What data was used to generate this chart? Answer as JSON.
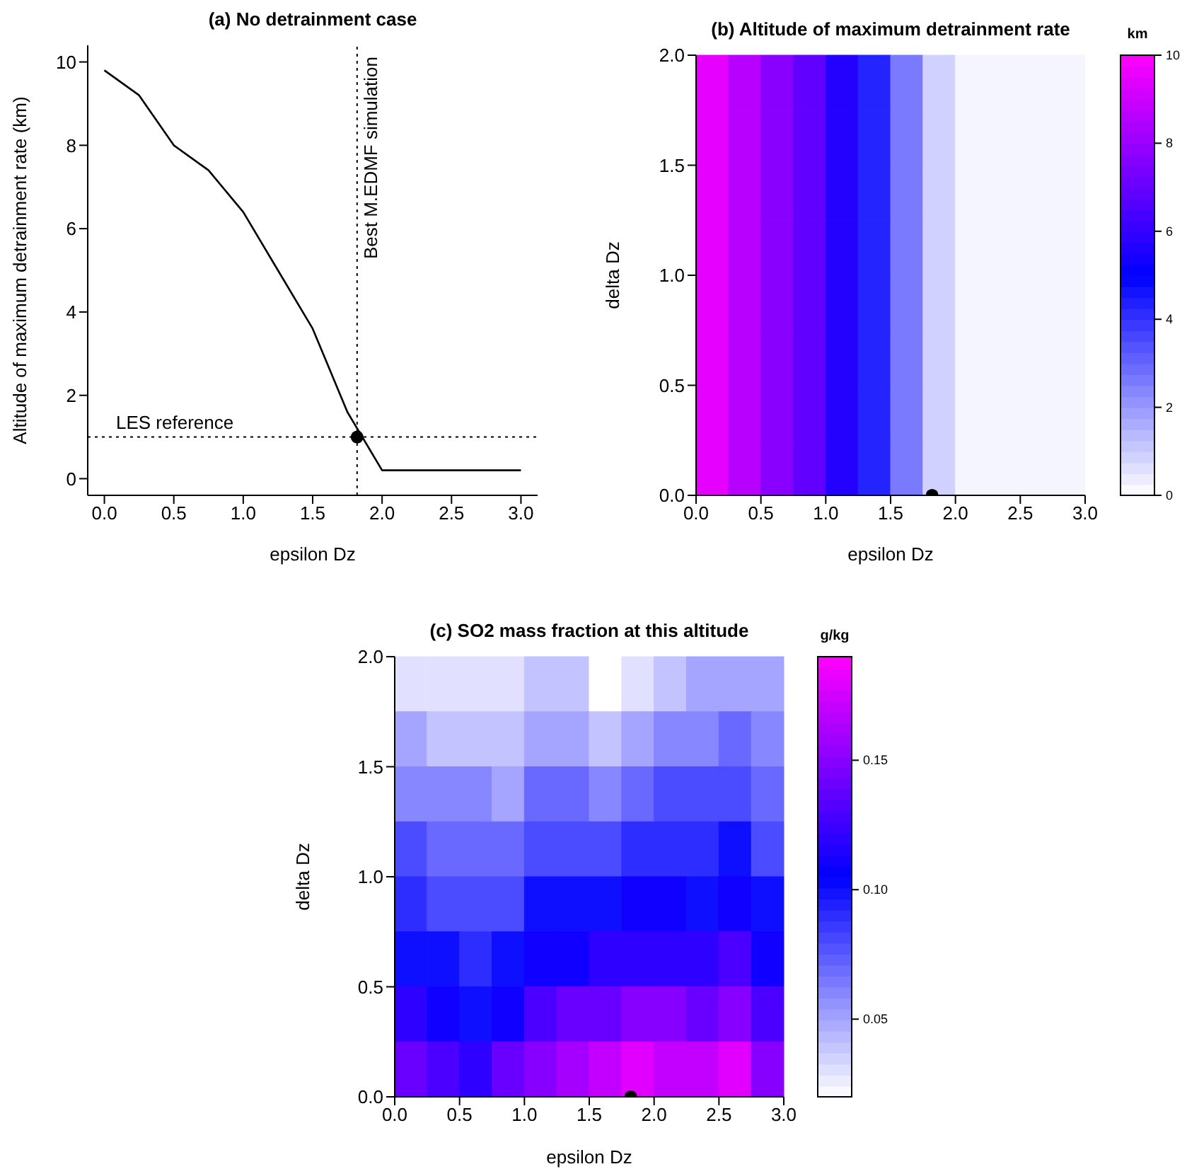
{
  "chart_data": [
    {
      "type": "line",
      "title": "(a) No detrainment case",
      "xlabel": "epsilon Dz",
      "ylabel": "Altitude of maximum detrainment rate (km)",
      "xlim": [
        -0.12,
        3.12
      ],
      "xticks": [
        {
          "value": 0,
          "label": "0.0"
        },
        {
          "value": 0.5,
          "label": "0.5"
        },
        {
          "value": 1,
          "label": "1.0"
        },
        {
          "value": 1.5,
          "label": "1.5"
        },
        {
          "value": 2,
          "label": "2.0"
        },
        {
          "value": 2.5,
          "label": "2.5"
        },
        {
          "value": 3,
          "label": "3.0"
        }
      ],
      "ylim": [
        -0.4,
        10.4
      ],
      "yticks": [
        0,
        2,
        4,
        6,
        8,
        10
      ],
      "series": [
        {
          "type": "line",
          "color": "#000000",
          "x": [
            0,
            0.25,
            0.5,
            0.75,
            1.0,
            1.25,
            1.5,
            1.75,
            2.0,
            2.5,
            3.0
          ],
          "values": [
            9.8,
            9.2,
            8.0,
            7.4,
            6.4,
            5.0,
            3.6,
            1.6,
            0.2,
            0.2,
            0.2
          ]
        },
        {
          "type": "scatter",
          "color": "#000000",
          "marker": "circle",
          "x": [
            1.82
          ],
          "values": [
            1.0
          ]
        }
      ],
      "ref_lines": [
        {
          "axis": "x",
          "value": 1.82,
          "label": "Best M.EDMF simulation",
          "line_style": "dotted"
        },
        {
          "axis": "y",
          "value": 1.0,
          "label": "LES reference",
          "line_style": "dotted"
        }
      ]
    },
    {
      "type": "heatmap",
      "title": "(b) Altitude of maximum detrainment rate",
      "xlabel": "epsilon Dz",
      "ylabel": "delta Dz",
      "clabel": "km",
      "x": [
        0.125,
        0.375,
        0.625,
        0.875,
        1.125,
        1.375,
        1.625,
        1.875,
        2.125,
        2.375,
        2.625,
        2.875
      ],
      "y": [
        1.875,
        1.625,
        1.375,
        1.125,
        0.875,
        0.625,
        0.375,
        0.125
      ],
      "cells": [
        [
          9.5,
          8.6,
          7.7,
          6.9,
          5.7,
          4.3,
          2.6,
          0.9,
          0.2,
          0.2,
          0.2,
          0.2
        ],
        [
          9.5,
          8.6,
          7.7,
          6.9,
          5.7,
          4.3,
          2.6,
          0.9,
          0.2,
          0.2,
          0.2,
          0.2
        ],
        [
          9.5,
          8.6,
          7.7,
          6.9,
          5.7,
          4.3,
          2.6,
          0.9,
          0.2,
          0.2,
          0.2,
          0.2
        ],
        [
          9.5,
          8.6,
          7.7,
          6.9,
          5.7,
          4.3,
          2.6,
          0.9,
          0.2,
          0.2,
          0.2,
          0.2
        ],
        [
          9.5,
          8.6,
          7.7,
          6.9,
          5.7,
          4.3,
          2.6,
          0.9,
          0.2,
          0.2,
          0.2,
          0.2
        ],
        [
          9.5,
          8.6,
          7.7,
          6.9,
          5.7,
          4.3,
          2.6,
          0.9,
          0.2,
          0.2,
          0.2,
          0.2
        ],
        [
          9.5,
          8.6,
          7.7,
          6.9,
          5.7,
          4.3,
          2.6,
          0.9,
          0.2,
          0.2,
          0.2,
          0.2
        ],
        [
          9.5,
          8.6,
          7.7,
          6.9,
          5.7,
          4.3,
          2.6,
          0.9,
          0.2,
          0.2,
          0.2,
          0.2
        ]
      ],
      "clim": [
        0,
        10
      ],
      "cticks": [
        0,
        2,
        4,
        6,
        8,
        10
      ],
      "xlim": [
        0,
        3
      ],
      "xticks": [
        {
          "value": 0,
          "label": "0.0"
        },
        {
          "value": 0.5,
          "label": "0.5"
        },
        {
          "value": 1,
          "label": "1.0"
        },
        {
          "value": 1.5,
          "label": "1.5"
        },
        {
          "value": 2,
          "label": "2.0"
        },
        {
          "value": 2.5,
          "label": "2.5"
        },
        {
          "value": 3,
          "label": "3.0"
        }
      ],
      "ylim": [
        0,
        2
      ],
      "yticks": [
        {
          "value": 0,
          "label": "0.0"
        },
        {
          "value": 0.5,
          "label": "0.5"
        },
        {
          "value": 1,
          "label": "1.0"
        },
        {
          "value": 1.5,
          "label": "1.5"
        },
        {
          "value": 2,
          "label": "2.0"
        }
      ],
      "series": [
        {
          "type": "scatter",
          "color": "#000000",
          "marker": "circle",
          "x": [
            1.82
          ],
          "values": [
            0
          ]
        }
      ]
    },
    {
      "type": "heatmap",
      "title": "(c) SO2 mass fraction at this altitude",
      "xlabel": "epsilon Dz",
      "ylabel": "delta Dz",
      "clabel": "g/kg",
      "x": [
        0.125,
        0.375,
        0.625,
        0.875,
        1.125,
        1.375,
        1.625,
        1.875,
        2.125,
        2.375,
        2.625,
        2.875
      ],
      "y": [
        1.875,
        1.625,
        1.375,
        1.125,
        0.875,
        0.625,
        0.375,
        0.125
      ],
      "cells": [
        [
          0.03,
          0.03,
          0.03,
          0.03,
          0.04,
          0.04,
          0.02,
          0.03,
          0.04,
          0.05,
          0.05,
          0.05
        ],
        [
          0.05,
          0.04,
          0.04,
          0.04,
          0.05,
          0.05,
          0.04,
          0.05,
          0.06,
          0.06,
          0.07,
          0.06
        ],
        [
          0.06,
          0.06,
          0.06,
          0.05,
          0.07,
          0.07,
          0.06,
          0.07,
          0.08,
          0.08,
          0.08,
          0.07
        ],
        [
          0.08,
          0.07,
          0.07,
          0.07,
          0.08,
          0.08,
          0.08,
          0.09,
          0.09,
          0.09,
          0.1,
          0.08
        ],
        [
          0.09,
          0.08,
          0.08,
          0.08,
          0.1,
          0.1,
          0.1,
          0.11,
          0.11,
          0.1,
          0.11,
          0.1
        ],
        [
          0.1,
          0.1,
          0.09,
          0.1,
          0.11,
          0.11,
          0.12,
          0.12,
          0.12,
          0.12,
          0.13,
          0.11
        ],
        [
          0.12,
          0.11,
          0.1,
          0.11,
          0.13,
          0.14,
          0.14,
          0.15,
          0.15,
          0.14,
          0.15,
          0.13
        ],
        [
          0.14,
          0.13,
          0.12,
          0.14,
          0.15,
          0.16,
          0.17,
          0.18,
          0.17,
          0.17,
          0.18,
          0.15
        ]
      ],
      "clim": [
        0.02,
        0.19
      ],
      "cticks": [
        {
          "value": 0.05,
          "label": "0.05"
        },
        {
          "value": 0.1,
          "label": "0.10"
        },
        {
          "value": 0.15,
          "label": "0.15"
        }
      ],
      "xlim": [
        0,
        3
      ],
      "xticks": [
        {
          "value": 0,
          "label": "0.0"
        },
        {
          "value": 0.5,
          "label": "0.5"
        },
        {
          "value": 1,
          "label": "1.0"
        },
        {
          "value": 1.5,
          "label": "1.5"
        },
        {
          "value": 2,
          "label": "2.0"
        },
        {
          "value": 2.5,
          "label": "2.5"
        },
        {
          "value": 3,
          "label": "3.0"
        }
      ],
      "ylim": [
        0,
        2
      ],
      "yticks": [
        {
          "value": 0,
          "label": "0.0"
        },
        {
          "value": 0.5,
          "label": "0.5"
        },
        {
          "value": 1,
          "label": "1.0"
        },
        {
          "value": 1.5,
          "label": "1.5"
        },
        {
          "value": 2,
          "label": "2.0"
        }
      ],
      "series": [
        {
          "type": "scatter",
          "color": "#000000",
          "marker": "circle",
          "x": [
            1.82
          ],
          "values": [
            0
          ]
        }
      ]
    }
  ]
}
